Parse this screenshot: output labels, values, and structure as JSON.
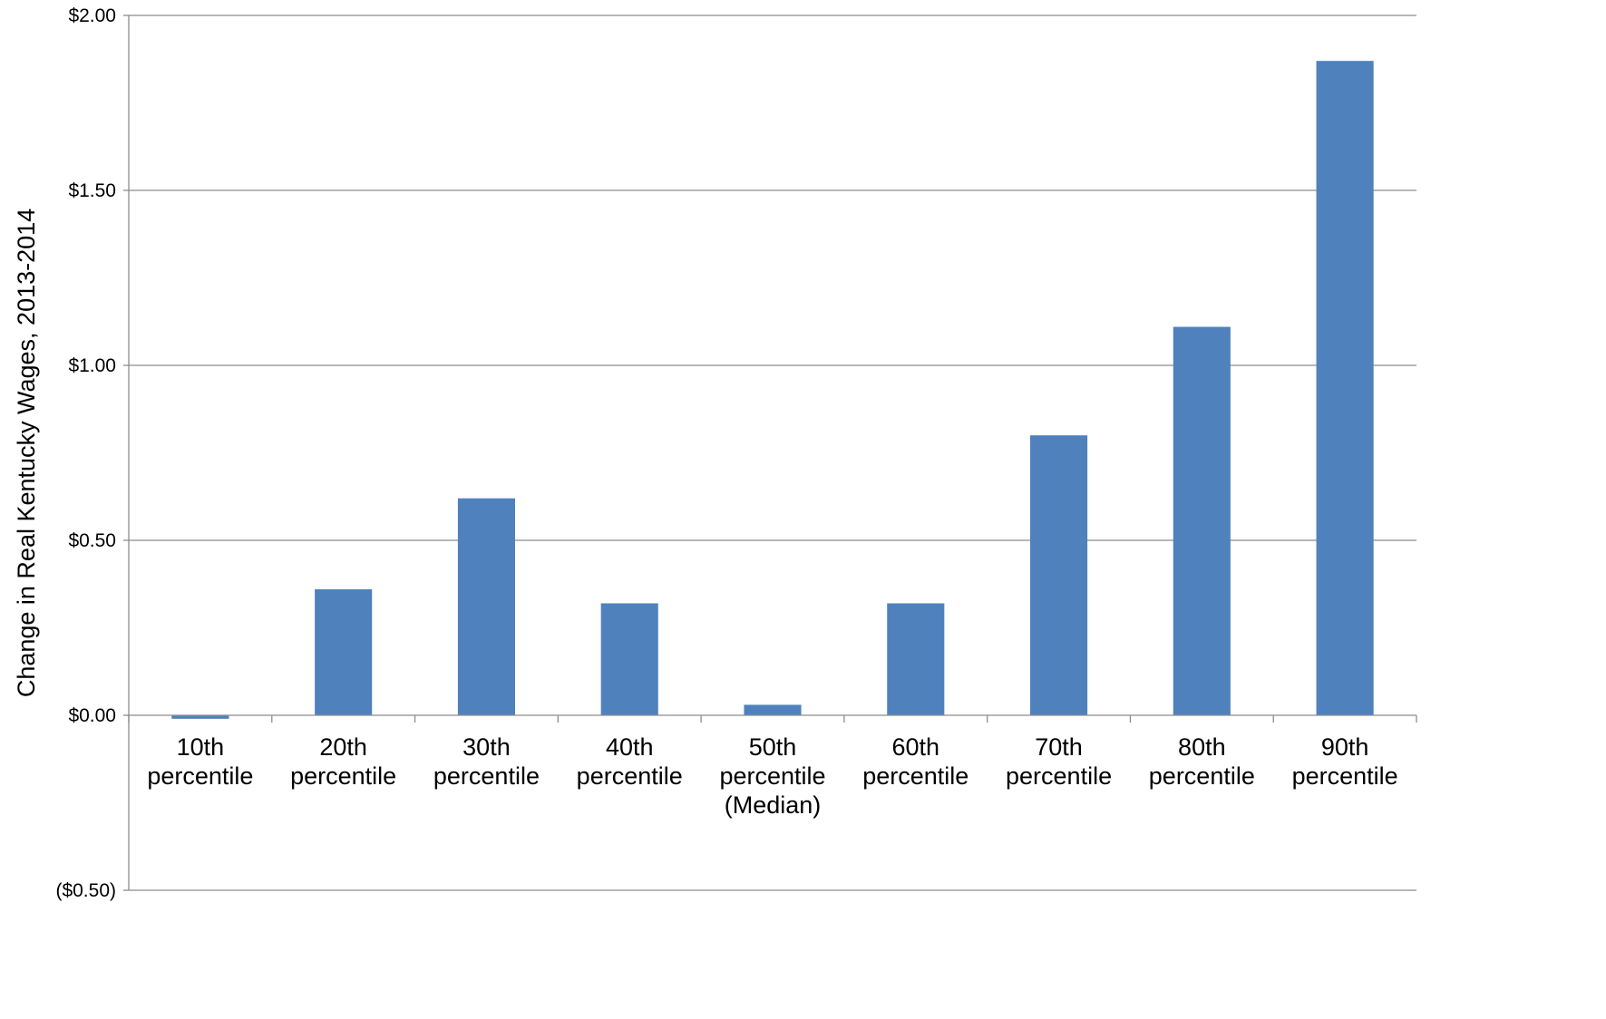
{
  "chart_data": {
    "type": "bar",
    "title": "",
    "xlabel": "",
    "ylabel": "Change in Real Kentucky Wages, 2013-2014",
    "categories": [
      [
        "10th",
        "percentile"
      ],
      [
        "20th",
        "percentile"
      ],
      [
        "30th",
        "percentile"
      ],
      [
        "40th",
        "percentile"
      ],
      [
        "50th",
        "percentile",
        "(Median)"
      ],
      [
        "60th",
        "percentile"
      ],
      [
        "70th",
        "percentile"
      ],
      [
        "80th",
        "percentile"
      ],
      [
        "90th",
        "percentile"
      ]
    ],
    "values": [
      -0.01,
      0.36,
      0.62,
      0.32,
      0.03,
      0.32,
      0.8,
      1.11,
      1.87
    ],
    "ylim": [
      -0.5,
      2.0
    ],
    "yticks": [
      -0.5,
      0.0,
      0.5,
      1.0,
      1.5,
      2.0
    ],
    "ytick_labels": [
      "($0.50)",
      "$0.00",
      "$0.50",
      "$1.00",
      "$1.50",
      "$2.00"
    ],
    "grid": true,
    "legend": "none",
    "colors": {
      "bar": "#4f81bd",
      "grid": "#8c8c8c"
    }
  }
}
